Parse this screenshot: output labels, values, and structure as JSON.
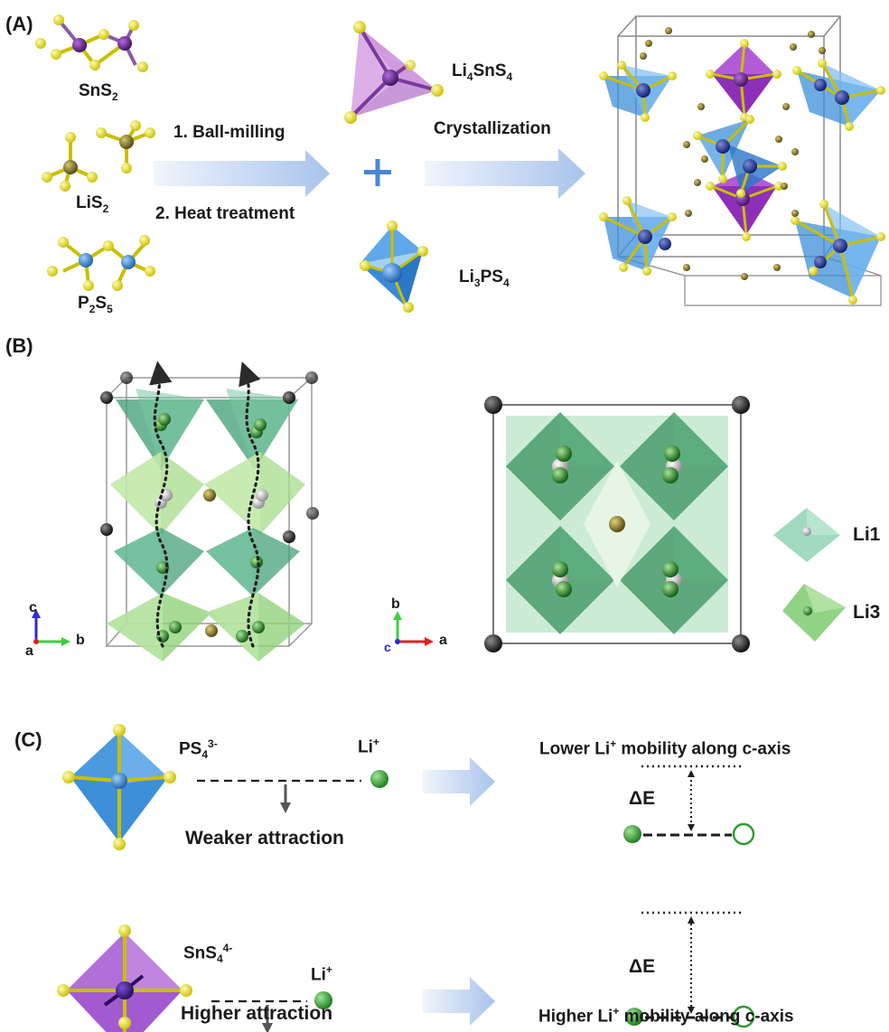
{
  "panels": {
    "a": {
      "label": "(A)",
      "precursors": [
        {
          "formula": "SnS",
          "sub": "2"
        },
        {
          "formula": "LiS",
          "sub": "2"
        },
        {
          "formula": "P",
          "sub": "2",
          "formula2": "S",
          "sub2": "5"
        }
      ],
      "steps": {
        "step1": "1. Ball-milling",
        "step2": "2. Heat treatment"
      },
      "products": {
        "p1": {
          "formula": "Li",
          "sub": "4",
          "formula2": "SnS",
          "sub2": "4"
        },
        "p2": {
          "formula": "Li",
          "sub": "3",
          "formula2": "PS",
          "sub2": "4"
        }
      },
      "plus": "+",
      "crystallization": "Crystallization"
    },
    "b": {
      "label": "(B)",
      "axes_left": {
        "c": "c",
        "b": "b",
        "a": "a"
      },
      "axes_right": {
        "b": "b",
        "c": "c",
        "a": "a"
      },
      "legend": {
        "li1": "Li1",
        "li3": "Li3"
      }
    },
    "c": {
      "label": "(C)",
      "top": {
        "ion": {
          "base": "PS",
          "sub": "4",
          "sup": "3-"
        },
        "li": {
          "base": "Li",
          "sup": "+"
        },
        "attraction": "Weaker attraction",
        "mobility": {
          "pre": "Lower Li",
          "sup": "+",
          "post": " mobility along c-axis"
        },
        "delta": "ΔE"
      },
      "bottom": {
        "ion": {
          "base": "SnS",
          "sub": "4",
          "sup": "4-"
        },
        "li": {
          "base": "Li",
          "sup": "+"
        },
        "attraction": "Higher attraction",
        "mobility": {
          "pre": "Higher Li",
          "sup": "+",
          "post": " mobility along c-axis"
        },
        "delta": "ΔE"
      }
    }
  },
  "colors": {
    "sulfur": "#e8e02a",
    "phosphorus_tetra": "#3d8fd8",
    "tin_tetra": "#a24fc9",
    "li_green": "#2e9a2e",
    "arrow_grad_start": "#eef3fb",
    "arrow_grad_end": "#a9c4ec",
    "li1_poly": "#8fd4b4",
    "li3_poly": "#7ecb6e"
  }
}
